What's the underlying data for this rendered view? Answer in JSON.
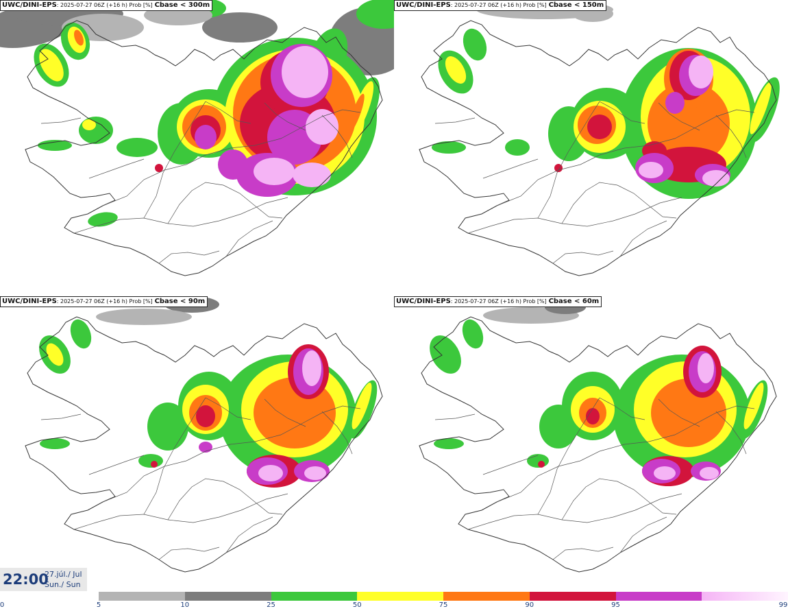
{
  "panels": [
    {
      "model": "UWC/DINI-EPS",
      "meta": ": 2025-07-27 06Z (+16 h) Prob [%]",
      "threshold": "Cbase < 300m"
    },
    {
      "model": "UWC/DINI-EPS",
      "meta": ": 2025-07-27 06Z (+16 h) Prob [%]",
      "threshold": "Cbase < 150m"
    },
    {
      "model": "UWC/DINI-EPS",
      "meta": ": 2025-07-27 06Z (+16 h) Prob [%]",
      "threshold": "Cbase < 90m"
    },
    {
      "model": "UWC/DINI-EPS",
      "meta": ": 2025-07-27 06Z (+16 h) Prob [%]",
      "threshold": "Cbase < 60m"
    }
  ],
  "valid_time": {
    "time": "22:00",
    "date_line1": "27.júl./ Jul",
    "date_line2": "Sun./ Sun"
  },
  "colorbar": {
    "labels": [
      "0",
      "5",
      "10",
      "25",
      "50",
      "75",
      "90",
      "95",
      "99"
    ],
    "colors": [
      "#b4b4b4",
      "#7d7d7d",
      "#3cc83c",
      "#ffff28",
      "#ff7814",
      "#d2143c",
      "#c83cc8",
      "#f5b4f5"
    ]
  }
}
